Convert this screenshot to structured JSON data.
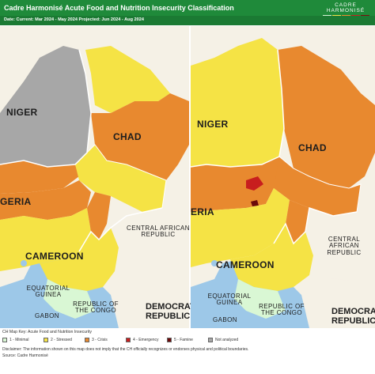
{
  "header": {
    "title": "Cadre Harmonisé Acute Food and Nutrition Insecurity Classification",
    "brand": "CADRE HARMONISÉ",
    "brand_swatches": [
      "#d6f5d6",
      "#f3e24a",
      "#ea8a2f",
      "#c6211f",
      "#7a0d0d"
    ]
  },
  "subheader": {
    "date_text": "Date: Current: Mar 2024 - May 2024 Projected: Jun 2024 - Aug 2024"
  },
  "maps": {
    "current": {
      "labels": {
        "niger": "NIGER",
        "chad": "CHAD",
        "nigeria": "GERIA",
        "central_african_republic": "CENTRAL AFRICAN REPUBLIC",
        "cameroon": "CAMEROON",
        "equatorial_guinea": "EQUATORIAL GUINEA",
        "republic_of_congo": "REPUBLIC OF THE CONGO",
        "gabon": "GABON",
        "drc": "DEMOCRATIC REPUBLIC"
      }
    },
    "projected": {
      "labels": {
        "niger": "NIGER",
        "chad": "CHAD",
        "nigeria": "ERIA",
        "central_african_republic": "CENTRAL AFRICAN REPUBLIC",
        "cameroon": "CAMEROON",
        "equatorial_guinea": "EQUATORIAL GUINEA",
        "republic_of_congo": "REPUBLIC OF THE CONGO",
        "gabon": "GABON",
        "drc": "DEMOCRATIC REPUBLIC"
      }
    }
  },
  "colors": {
    "minimal": "#d9f7d4",
    "stressed": "#f5e345",
    "crisis": "#e8892f",
    "emergency": "#c81e1e",
    "famine": "#6b0a0a",
    "not_analyzed": "#a7a7a7",
    "land": "#f5f1e6",
    "water": "#9dc8e8",
    "border": "#ffffff",
    "header": "#1f8a3a"
  },
  "legend": {
    "key_title": "CH Map Key: Acute Food and Nutrition Insecurity",
    "items": [
      {
        "label": "1 - Minimal",
        "color": "#d9f7d4"
      },
      {
        "label": "2 - Stressed",
        "color": "#f5e345"
      },
      {
        "label": "3 - Crisis",
        "color": "#e8892f"
      },
      {
        "label": "4 - Emergency",
        "color": "#c81e1e"
      },
      {
        "label": "5 - Famine",
        "color": "#6b0a0a"
      },
      {
        "label": "Not analyzed",
        "color": "#a7a7a7"
      }
    ],
    "disclaimer": "Disclaimer: The information shown on this map does not imply that the CH officially recognizes or endorses physical and political boundaries.",
    "source": "Source: Cadre Harmonisé"
  }
}
